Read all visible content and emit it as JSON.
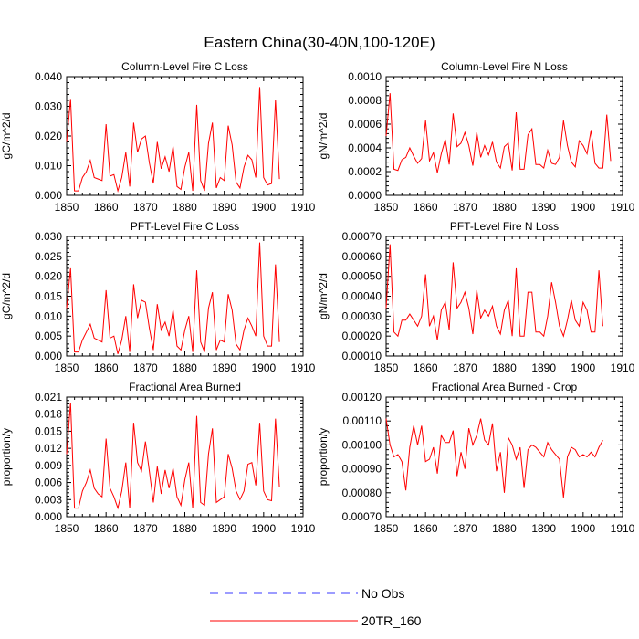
{
  "figure_title": "Eastern China(30-40N,100-120E)",
  "colors": {
    "series": "#ff0000",
    "obs": "#3a3aff",
    "axes": "#000000"
  },
  "legend": [
    {
      "label": "No Obs",
      "style": "dashed",
      "color": "#3a3aff"
    },
    {
      "label": "20TR_160",
      "style": "solid",
      "color": "#ff0000"
    }
  ],
  "chart_data": [
    {
      "type": "line",
      "title": "Column-Level Fire C Loss",
      "xlabel": "",
      "ylabel": "gC/m^2/d",
      "xlim": [
        1850,
        1910
      ],
      "ylim": [
        0,
        0.04
      ],
      "xticks": [
        1850,
        1860,
        1870,
        1880,
        1890,
        1900,
        1910
      ],
      "yticks": [
        0,
        0.01,
        0.02,
        0.03,
        0.04
      ],
      "ytick_labels": [
        "0.000",
        "0.010",
        "0.020",
        "0.030",
        "0.040"
      ],
      "series": [
        {
          "name": "20TR_160",
          "x_start": 1850,
          "x_step": 1,
          "values": [
            0.018,
            0.0325,
            0.0015,
            0.0015,
            0.006,
            0.008,
            0.0118,
            0.006,
            0.0055,
            0.005,
            0.024,
            0.0065,
            0.007,
            0.0015,
            0.006,
            0.0145,
            0.003,
            0.0245,
            0.0145,
            0.019,
            0.02,
            0.011,
            0.004,
            0.018,
            0.009,
            0.013,
            0.008,
            0.0165,
            0.003,
            0.002,
            0.0095,
            0.0145,
            0.0015,
            0.0305,
            0.005,
            0.0015,
            0.0175,
            0.0245,
            0.0025,
            0.006,
            0.005,
            0.0235,
            0.017,
            0.0045,
            0.0025,
            0.0095,
            0.0135,
            0.012,
            0.006,
            0.0365,
            0.006,
            0.0035,
            0.004,
            0.0322,
            0.0055
          ]
        }
      ]
    },
    {
      "type": "line",
      "title": "Column-Level Fire N Loss",
      "xlabel": "",
      "ylabel": "gN/m^2/d",
      "xlim": [
        1850,
        1910
      ],
      "ylim": [
        0,
        0.001
      ],
      "xticks": [
        1850,
        1860,
        1870,
        1880,
        1890,
        1900,
        1910
      ],
      "yticks": [
        0,
        0.0002,
        0.0004,
        0.0006,
        0.0008,
        0.001
      ],
      "ytick_labels": [
        "0.0000",
        "0.0002",
        "0.0004",
        "0.0006",
        "0.0008",
        "0.0010"
      ],
      "series": [
        {
          "name": "20TR_160",
          "x_start": 1850,
          "x_step": 1,
          "values": [
            0.0005,
            0.00086,
            0.00022,
            0.00021,
            0.0003,
            0.00032,
            0.0004,
            0.00033,
            0.00027,
            0.00031,
            0.00063,
            0.00029,
            0.00036,
            0.00019,
            0.00035,
            0.00047,
            0.00026,
            0.00069,
            0.00041,
            0.00044,
            0.00053,
            0.00042,
            0.00025,
            0.00053,
            0.00032,
            0.00042,
            0.00034,
            0.00045,
            0.00028,
            0.00023,
            0.00041,
            0.00044,
            0.00021,
            0.0007,
            0.00022,
            0.00022,
            0.00051,
            0.00056,
            0.00026,
            0.00026,
            0.00023,
            0.00038,
            0.00027,
            0.00026,
            0.00032,
            0.00063,
            0.00042,
            0.00028,
            0.00024,
            0.00046,
            0.00042,
            0.00035,
            0.00055,
            0.00027,
            0.00023,
            0.00023,
            0.00068,
            0.00029
          ]
        }
      ]
    },
    {
      "type": "line",
      "title": "PFT-Level Fire C Loss",
      "xlabel": "",
      "ylabel": "gC/m^2/d",
      "xlim": [
        1850,
        1910
      ],
      "ylim": [
        0,
        0.03
      ],
      "xticks": [
        1850,
        1860,
        1870,
        1880,
        1890,
        1900,
        1910
      ],
      "yticks": [
        0,
        0.005,
        0.01,
        0.015,
        0.02,
        0.025,
        0.03
      ],
      "ytick_labels": [
        "0.000",
        "0.005",
        "0.010",
        "0.015",
        "0.020",
        "0.025",
        "0.030"
      ],
      "series": [
        {
          "name": "20TR_160",
          "x_start": 1850,
          "x_step": 1,
          "values": [
            0.012,
            0.022,
            0.001,
            0.001,
            0.004,
            0.006,
            0.008,
            0.0045,
            0.004,
            0.0035,
            0.0165,
            0.0045,
            0.005,
            0.0005,
            0.004,
            0.01,
            0.001,
            0.018,
            0.0095,
            0.014,
            0.0135,
            0.007,
            0.0015,
            0.013,
            0.0065,
            0.0085,
            0.005,
            0.0115,
            0.0025,
            0.0015,
            0.0065,
            0.01,
            0.001,
            0.0215,
            0.0035,
            0.001,
            0.012,
            0.016,
            0.0015,
            0.004,
            0.0035,
            0.0155,
            0.0115,
            0.003,
            0.0015,
            0.0065,
            0.0095,
            0.0075,
            0.005,
            0.0285,
            0.005,
            0.0025,
            0.0025,
            0.023,
            0.0035
          ]
        }
      ]
    },
    {
      "type": "line",
      "title": "PFT-Level Fire N Loss",
      "xlabel": "",
      "ylabel": "gN/m^2/d",
      "xlim": [
        1850,
        1910
      ],
      "ylim": [
        0.0001,
        0.0007
      ],
      "xticks": [
        1850,
        1860,
        1870,
        1880,
        1890,
        1900,
        1910
      ],
      "yticks": [
        0.0001,
        0.0002,
        0.0003,
        0.0004,
        0.0005,
        0.0006,
        0.0007
      ],
      "ytick_labels": [
        "0.00010",
        "0.00020",
        "0.00030",
        "0.00040",
        "0.00050",
        "0.00060",
        "0.00070"
      ],
      "series": [
        {
          "name": "20TR_160",
          "x_start": 1850,
          "x_step": 1,
          "values": [
            0.00034,
            0.00066,
            0.00022,
            0.0002,
            0.00028,
            0.00028,
            0.00031,
            0.00028,
            0.00025,
            0.0003,
            0.00051,
            0.00025,
            0.0003,
            0.00018,
            0.00033,
            0.00037,
            0.00023,
            0.00057,
            0.00034,
            0.00037,
            0.00042,
            0.00034,
            0.00021,
            0.00043,
            0.00029,
            0.00033,
            0.0003,
            0.00035,
            0.00025,
            0.00021,
            0.00033,
            0.00038,
            0.0002,
            0.00054,
            0.0002,
            0.0002,
            0.00042,
            0.00042,
            0.00022,
            0.00022,
            0.0002,
            0.0003,
            0.00047,
            0.00037,
            0.00025,
            0.0002,
            0.00028,
            0.00038,
            0.00028,
            0.00025,
            0.00037,
            0.00033,
            0.00022,
            0.00022,
            0.00053,
            0.00025
          ]
        }
      ]
    },
    {
      "type": "line",
      "title": "Fractional Area Burned",
      "xlabel": "",
      "ylabel": "proportion/y",
      "xlim": [
        1850,
        1910
      ],
      "ylim": [
        0,
        0.021
      ],
      "xticks": [
        1850,
        1860,
        1870,
        1880,
        1890,
        1900,
        1910
      ],
      "yticks": [
        0,
        0.003,
        0.006,
        0.009,
        0.012,
        0.015,
        0.018,
        0.021
      ],
      "ytick_labels": [
        "0.000",
        "0.003",
        "0.006",
        "0.009",
        "0.012",
        "0.015",
        "0.018",
        "0.021"
      ],
      "series": [
        {
          "name": "20TR_160",
          "x_start": 1850,
          "x_step": 1,
          "values": [
            0.011,
            0.02,
            0.0015,
            0.0015,
            0.0045,
            0.006,
            0.0082,
            0.005,
            0.004,
            0.0035,
            0.0137,
            0.005,
            0.0035,
            0.0015,
            0.0045,
            0.0095,
            0.0015,
            0.0165,
            0.0095,
            0.008,
            0.0132,
            0.008,
            0.0025,
            0.0088,
            0.004,
            0.0082,
            0.005,
            0.0085,
            0.0035,
            0.002,
            0.0065,
            0.0095,
            0.0015,
            0.0177,
            0.0025,
            0.002,
            0.011,
            0.0155,
            0.0025,
            0.003,
            0.0035,
            0.011,
            0.0085,
            0.0045,
            0.003,
            0.0045,
            0.0092,
            0.0095,
            0.0055,
            0.0165,
            0.0045,
            0.003,
            0.0028,
            0.0172,
            0.0052
          ]
        }
      ]
    },
    {
      "type": "line",
      "title": "Fractional Area Burned - Crop",
      "xlabel": "",
      "ylabel": "proportion/y",
      "xlim": [
        1850,
        1910
      ],
      "ylim": [
        0.0007,
        0.0012
      ],
      "xticks": [
        1850,
        1860,
        1870,
        1880,
        1890,
        1900,
        1910
      ],
      "yticks": [
        0.0007,
        0.0008,
        0.0009,
        0.001,
        0.0011,
        0.0012
      ],
      "ytick_labels": [
        "0.00070",
        "0.00080",
        "0.00090",
        "0.00100",
        "0.00110",
        "0.00120"
      ],
      "series": [
        {
          "name": "20TR_160",
          "x_start": 1850,
          "x_step": 1,
          "values": [
            0.00111,
            0.001,
            0.00095,
            0.00096,
            0.00093,
            0.00081,
            0.00099,
            0.00108,
            0.001,
            0.00108,
            0.00093,
            0.00094,
            0.00099,
            0.00088,
            0.00104,
            0.00101,
            0.00101,
            0.00106,
            0.00087,
            0.00097,
            0.0009,
            0.00107,
            0.001,
            0.00104,
            0.00111,
            0.00102,
            0.001,
            0.00109,
            0.00089,
            0.00097,
            0.0008,
            0.00103,
            0.001,
            0.00094,
            0.00099,
            0.00082,
            0.00098,
            0.001,
            0.00099,
            0.00097,
            0.00095,
            0.00101,
            0.00098,
            0.00096,
            0.00094,
            0.00078,
            0.00095,
            0.00099,
            0.00098,
            0.00095,
            0.00096,
            0.00095,
            0.00097,
            0.00095,
            0.00099,
            0.00102
          ]
        }
      ]
    }
  ]
}
